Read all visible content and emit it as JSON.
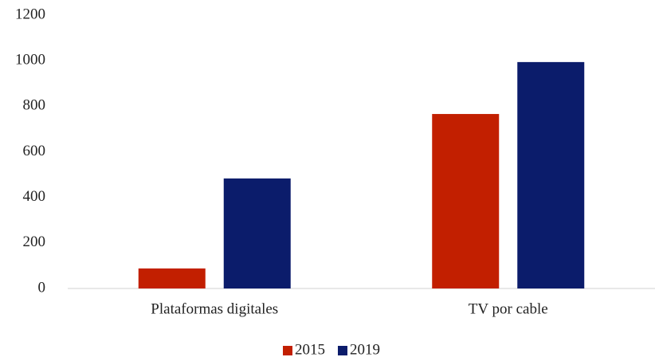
{
  "chart_data": {
    "type": "bar",
    "categories": [
      "Plataformas digitales",
      "TV por cable"
    ],
    "series": [
      {
        "name": "2015",
        "color": "#c21f00",
        "values": [
          88,
          766
        ]
      },
      {
        "name": "2019",
        "color": "#0b1c6b",
        "values": [
          483,
          994
        ]
      }
    ],
    "ylim": [
      0,
      1200
    ],
    "yticks": [
      0,
      200,
      400,
      600,
      800,
      1000,
      1200
    ],
    "grid": false,
    "legend": "bottom"
  }
}
